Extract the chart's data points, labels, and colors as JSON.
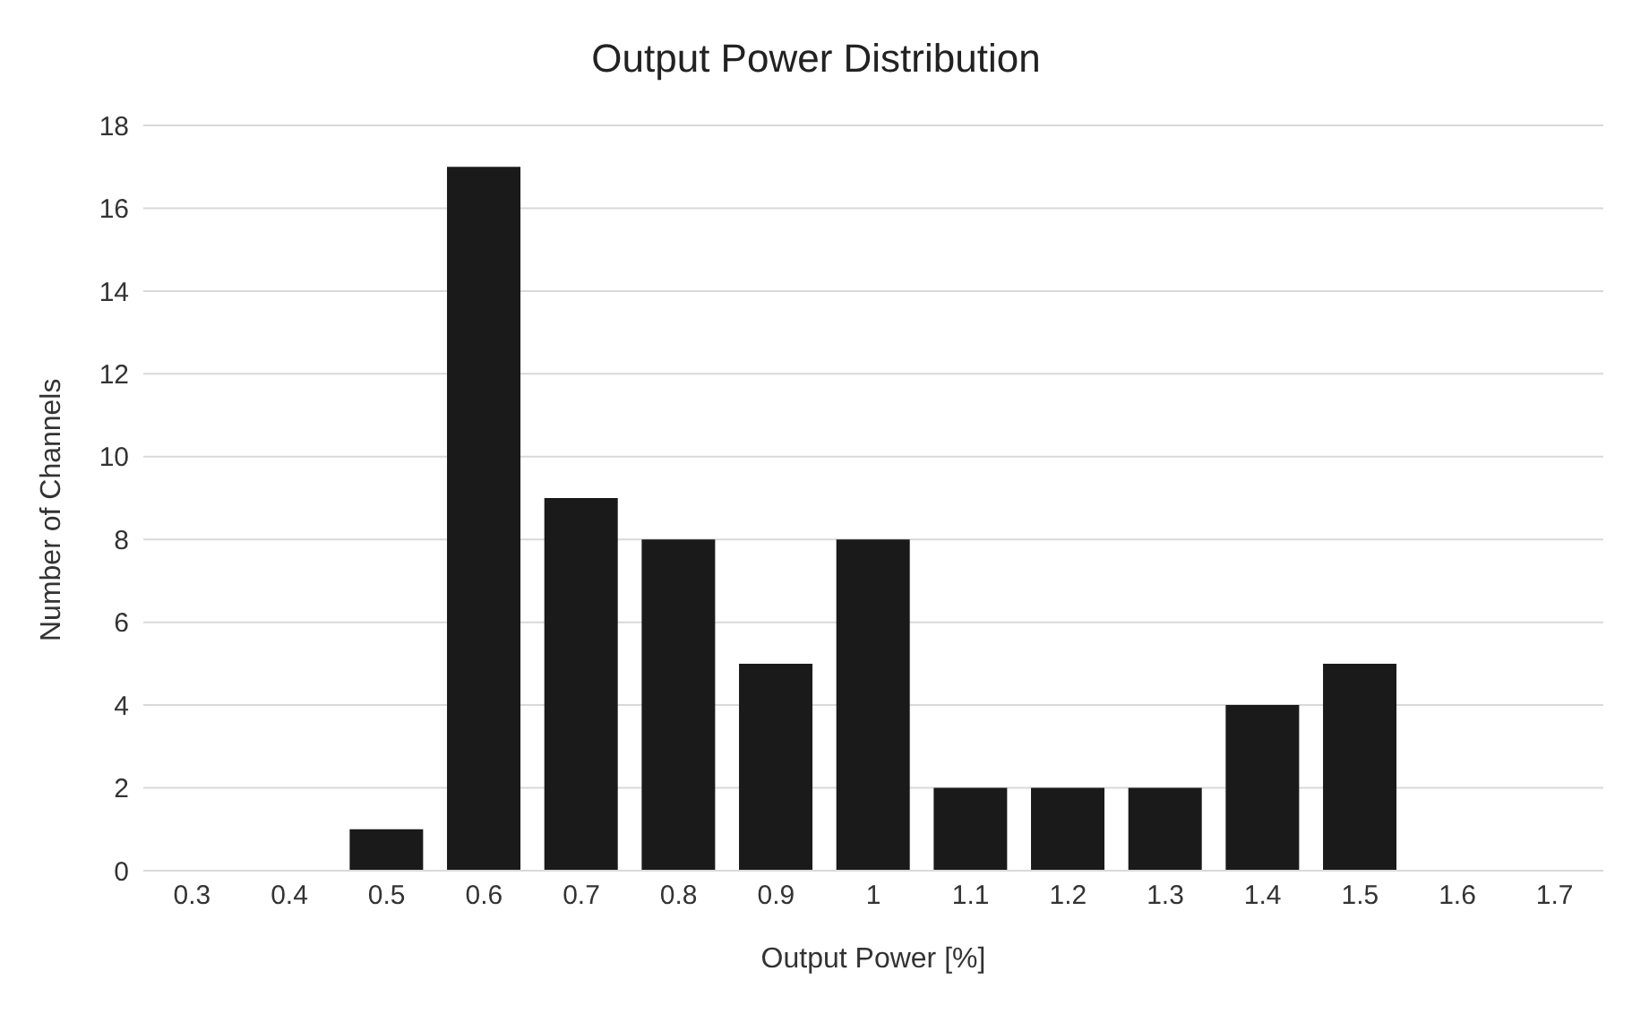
{
  "chart_data": {
    "type": "bar",
    "title": "Output Power Distribution",
    "xlabel": "Output Power [%]",
    "ylabel": "Number of Channels",
    "categories": [
      "0.3",
      "0.4",
      "0.5",
      "0.6",
      "0.7",
      "0.8",
      "0.9",
      "1",
      "1.1",
      "1.2",
      "1.3",
      "1.4",
      "1.5",
      "1.6",
      "1.7"
    ],
    "values": [
      0,
      0,
      1,
      17,
      9,
      8,
      5,
      8,
      2,
      2,
      2,
      4,
      5,
      0,
      0
    ],
    "color": "#1a1a1a",
    "ylim": [
      0,
      18
    ],
    "yticks": [
      0,
      2,
      4,
      6,
      8,
      10,
      12,
      14,
      16,
      18
    ],
    "grid": "y",
    "legend": false
  }
}
